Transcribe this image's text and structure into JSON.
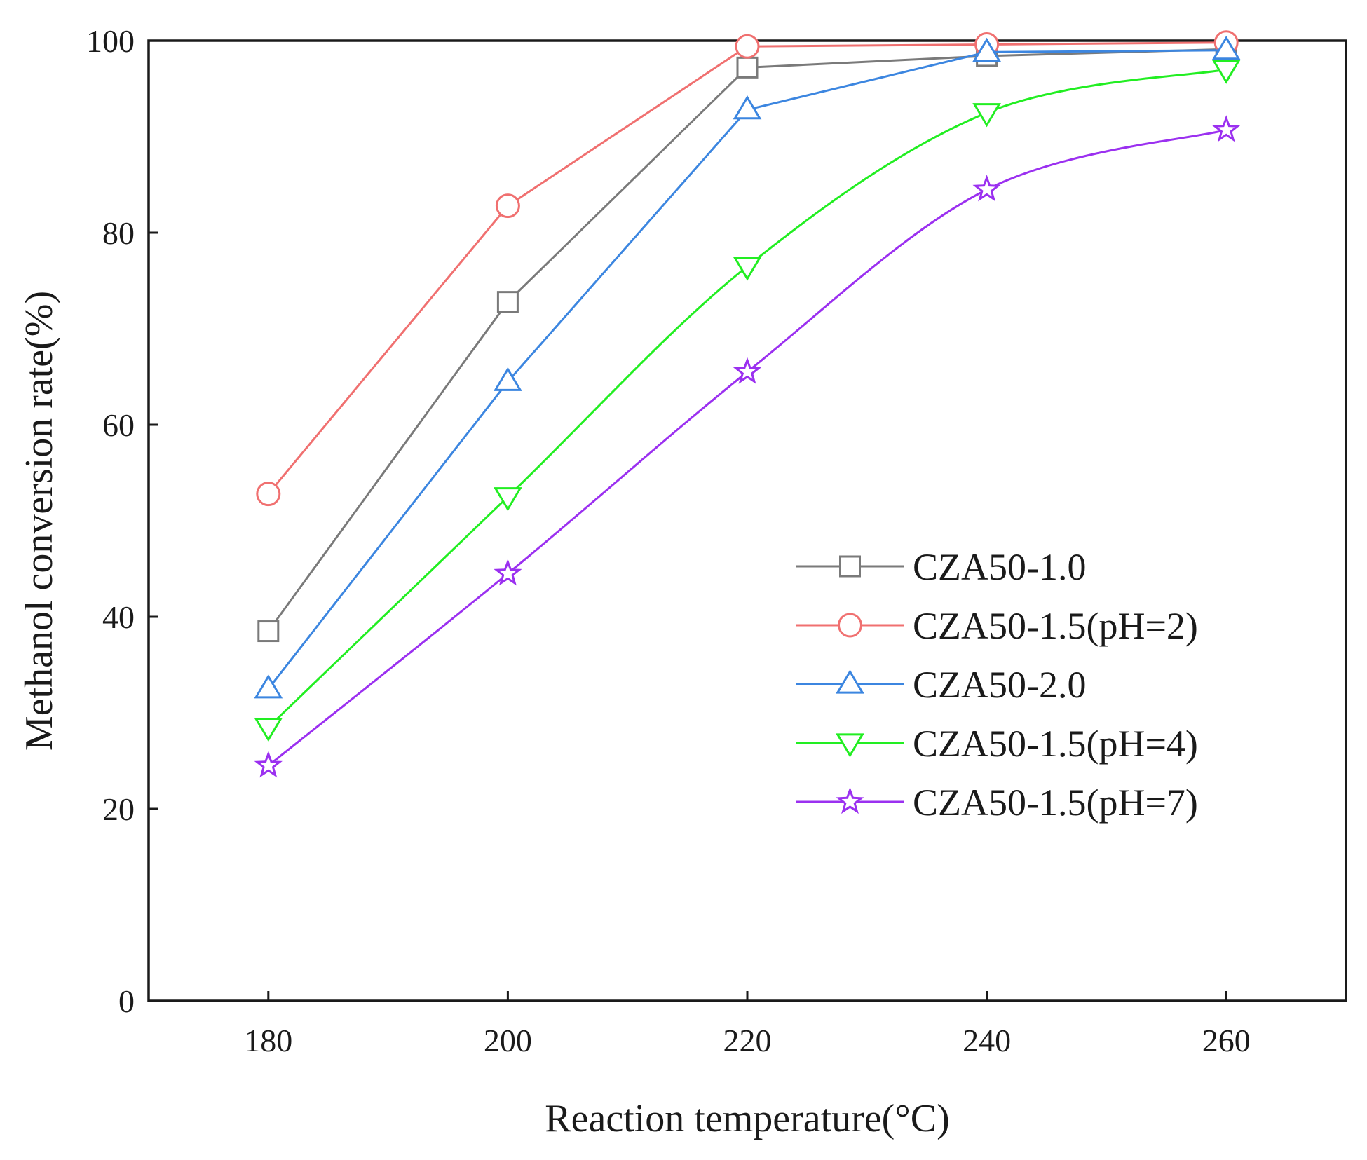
{
  "chart_data": {
    "type": "line",
    "title": "",
    "xlabel": "Reaction temperature(°C)",
    "ylabel": "Methanol conversion rate(%)",
    "x": [
      180,
      200,
      220,
      240,
      260
    ],
    "xlim": [
      170,
      270
    ],
    "ylim": [
      0,
      100
    ],
    "xticks": [
      "180",
      "200",
      "220",
      "240",
      "260"
    ],
    "yticks": [
      "0",
      "20",
      "40",
      "60",
      "80",
      "100"
    ],
    "grid": false,
    "legend_position": "center-right",
    "series": [
      {
        "name": "CZA50-1.0",
        "marker": "square",
        "color": "#7a7a7a",
        "smooth": false,
        "values": [
          38.5,
          72.8,
          97.2,
          98.4,
          99.1
        ]
      },
      {
        "name": "CZA50-1.5(pH=2)",
        "marker": "circle",
        "color": "#f07070",
        "smooth": false,
        "values": [
          52.8,
          82.8,
          99.4,
          99.6,
          99.8
        ]
      },
      {
        "name": "CZA50-2.0",
        "marker": "triangle-up",
        "color": "#3c86e0",
        "smooth": false,
        "values": [
          32.5,
          64.5,
          92.8,
          98.8,
          99.0
        ]
      },
      {
        "name": "CZA50-1.5(pH=4)",
        "marker": "triangle-down",
        "color": "#22ee22",
        "smooth": true,
        "values": [
          28.5,
          52.5,
          76.5,
          92.5,
          97.0
        ]
      },
      {
        "name": "CZA50-1.5(pH=7)",
        "marker": "star",
        "color": "#9b30f0",
        "smooth": true,
        "values": [
          24.5,
          44.5,
          65.5,
          84.5,
          90.7
        ]
      }
    ]
  }
}
